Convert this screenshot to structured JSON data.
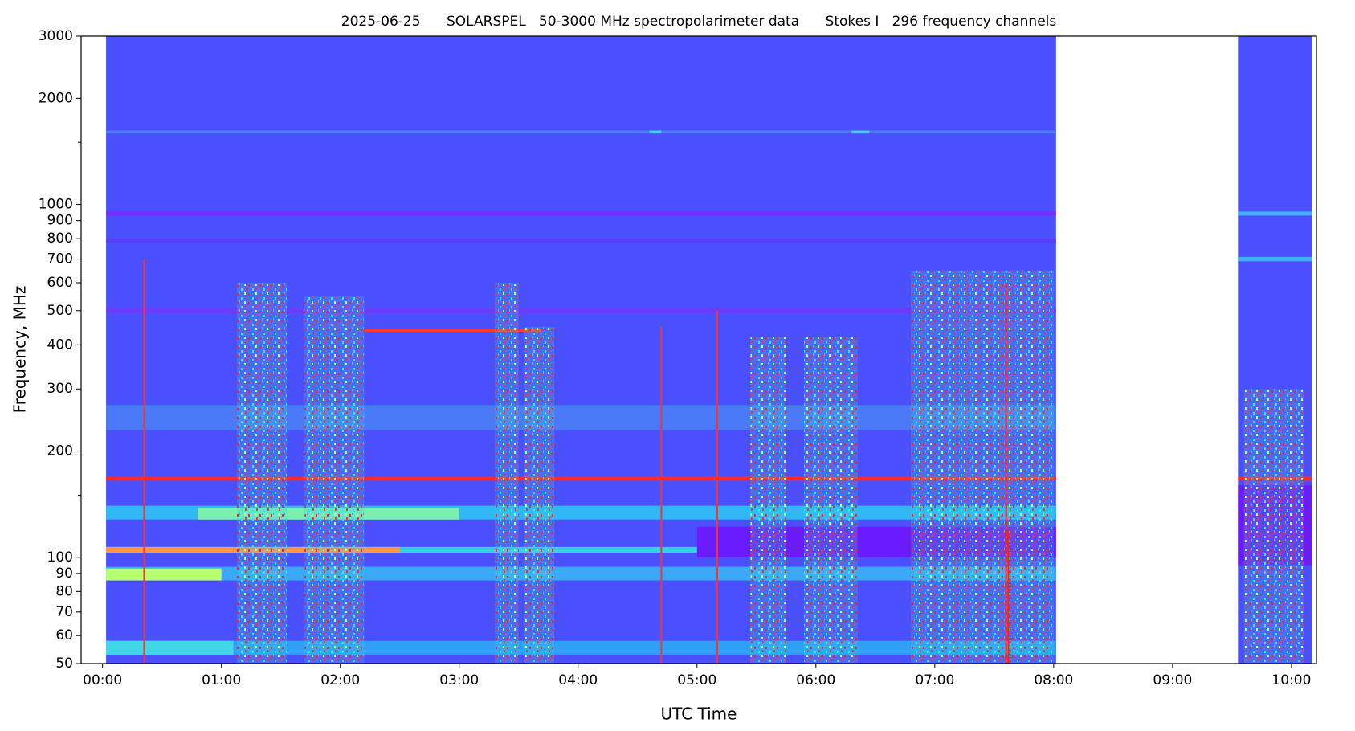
{
  "chart_data": {
    "type": "spectrogram",
    "title": "2025-06-25      SOLARSPEL   50-3000 MHz spectropolarimeter data      Stokes I   296 frequency channels",
    "x_label": "UTC Time",
    "y_label": "Frequency, MHz",
    "y_scale": "log",
    "xlim": [
      -0.18,
      10.21
    ],
    "ylim": [
      50,
      3000
    ],
    "xticks": [
      {
        "value": 0,
        "label": "00:00"
      },
      {
        "value": 1,
        "label": "01:00"
      },
      {
        "value": 2,
        "label": "02:00"
      },
      {
        "value": 3,
        "label": "03:00"
      },
      {
        "value": 4,
        "label": "04:00"
      },
      {
        "value": 5,
        "label": "05:00"
      },
      {
        "value": 6,
        "label": "06:00"
      },
      {
        "value": 7,
        "label": "07:00"
      },
      {
        "value": 8,
        "label": "08:00"
      },
      {
        "value": 9,
        "label": "09:00"
      },
      {
        "value": 10,
        "label": "10:00"
      }
    ],
    "yticks": [
      50,
      60,
      70,
      80,
      90,
      100,
      200,
      300,
      400,
      500,
      600,
      700,
      800,
      900,
      1000,
      2000,
      3000
    ],
    "yminor_ticks": [
      150,
      1500
    ],
    "background_color": "#4b50ff",
    "coverage": [
      {
        "start": 0.03,
        "end": 8.02
      },
      {
        "start": 9.55,
        "end": 10.17
      }
    ],
    "bands": [
      {
        "start": 0.03,
        "end": 8.02,
        "freq_low": 930,
        "freq_high": 955,
        "color": "#7a2cff"
      },
      {
        "start": 9.55,
        "end": 10.17,
        "freq_low": 930,
        "freq_high": 955,
        "color": "#3fb0f5"
      },
      {
        "start": 0.03,
        "end": 8.02,
        "freq_low": 780,
        "freq_high": 800,
        "color": "#5a3cff"
      },
      {
        "start": 0.03,
        "end": 8.02,
        "freq_low": 490,
        "freq_high": 510,
        "color": "#6a3cff"
      },
      {
        "start": 0.03,
        "end": 8.02,
        "freq_low": 1590,
        "freq_high": 1620,
        "color": "#4f7cf8"
      },
      {
        "start": 0.03,
        "end": 8.02,
        "freq_low": 230,
        "freq_high": 270,
        "color": "#4a7af8"
      },
      {
        "start": 0.03,
        "end": 8.02,
        "freq_low": 165,
        "freq_high": 169,
        "color": "#ff2a2a"
      },
      {
        "start": 9.55,
        "end": 10.17,
        "freq_low": 165,
        "freq_high": 169,
        "color": "#ff2a2a"
      },
      {
        "start": 2.2,
        "end": 3.7,
        "freq_low": 436,
        "freq_high": 444,
        "color": "#ff3a2a"
      },
      {
        "start": 0.03,
        "end": 8.02,
        "freq_low": 128,
        "freq_high": 140,
        "color": "#2fb8f5"
      },
      {
        "start": 0.8,
        "end": 3.0,
        "freq_low": 128,
        "freq_high": 138,
        "color": "#7af0b0"
      },
      {
        "start": 0.03,
        "end": 8.02,
        "freq_low": 103,
        "freq_high": 107,
        "color": "#35d0ee"
      },
      {
        "start": 0.03,
        "end": 2.5,
        "freq_low": 103,
        "freq_high": 107,
        "color": "#ff9a40"
      },
      {
        "start": 0.03,
        "end": 8.02,
        "freq_low": 86,
        "freq_high": 94,
        "color": "#3aa8f5"
      },
      {
        "start": 0.03,
        "end": 1.0,
        "freq_low": 86,
        "freq_high": 93,
        "color": "#b8ff70"
      },
      {
        "start": 0.03,
        "end": 8.02,
        "freq_low": 53,
        "freq_high": 58,
        "color": "#2fa0f5"
      },
      {
        "start": 0.03,
        "end": 1.1,
        "freq_low": 53,
        "freq_high": 58,
        "color": "#40d8e8"
      },
      {
        "start": 5.0,
        "end": 8.02,
        "freq_low": 100,
        "freq_high": 122,
        "color": "#6a1cff"
      },
      {
        "start": 9.55,
        "end": 10.17,
        "freq_low": 95,
        "freq_high": 160,
        "color": "#6a1cff"
      },
      {
        "start": 4.6,
        "end": 4.7,
        "freq_low": 1590,
        "freq_high": 1620,
        "color": "#3fd0f0"
      },
      {
        "start": 6.3,
        "end": 6.45,
        "freq_low": 1590,
        "freq_high": 1620,
        "color": "#3fd0f0"
      },
      {
        "start": 9.55,
        "end": 10.17,
        "freq_low": 690,
        "freq_high": 710,
        "color": "#3fb0f5"
      }
    ],
    "bursts": [
      {
        "start": 1.13,
        "end": 1.55,
        "freq_low": 50,
        "freq_high": 600,
        "color": "#3ac8f0"
      },
      {
        "start": 1.7,
        "end": 2.2,
        "freq_low": 50,
        "freq_high": 550,
        "color": "#3ac8f0"
      },
      {
        "start": 3.3,
        "end": 3.5,
        "freq_low": 50,
        "freq_high": 600,
        "color": "#3ac8f0"
      },
      {
        "start": 3.55,
        "end": 3.8,
        "freq_low": 50,
        "freq_high": 450,
        "color": "#3ac8f0"
      },
      {
        "start": 5.45,
        "end": 5.75,
        "freq_low": 50,
        "freq_high": 420,
        "color": "#3ac8f0"
      },
      {
        "start": 5.9,
        "end": 6.35,
        "freq_low": 50,
        "freq_high": 420,
        "color": "#3ac8f0"
      },
      {
        "start": 6.8,
        "end": 8.0,
        "freq_low": 50,
        "freq_high": 650,
        "color": "#3ac8f0"
      },
      {
        "start": 9.6,
        "end": 10.1,
        "freq_low": 50,
        "freq_high": 300,
        "color": "#3ac8f0"
      }
    ],
    "lines": [
      {
        "time": 0.35,
        "freq_low": 50,
        "freq_high": 700,
        "color": "#ff3030"
      },
      {
        "time": 4.7,
        "freq_low": 50,
        "freq_high": 450,
        "color": "#ff3030"
      },
      {
        "time": 5.17,
        "freq_low": 50,
        "freq_high": 500,
        "color": "#ff3030"
      },
      {
        "time": 7.6,
        "freq_low": 50,
        "freq_high": 600,
        "color": "#ff1a1a"
      },
      {
        "time": 7.62,
        "freq_low": 50,
        "freq_high": 120,
        "color": "#ff1a1a"
      }
    ]
  }
}
